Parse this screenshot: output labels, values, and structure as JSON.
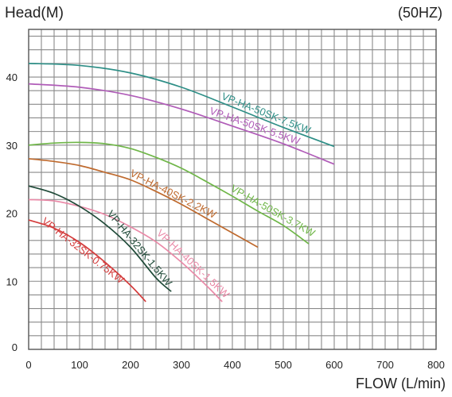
{
  "chart_data": {
    "type": "line",
    "ylabel": "Head(M)",
    "frequency_label": "(50HZ)",
    "xlabel": "FLOW (L/min)",
    "xlim": [
      0,
      800
    ],
    "ylim": [
      0,
      47
    ],
    "x_ticks": [
      0,
      100,
      200,
      300,
      400,
      500,
      600,
      700,
      800
    ],
    "y_ticks": [
      0,
      10,
      20,
      30,
      40
    ],
    "grid": true,
    "series": [
      {
        "name": "VP-HA-50SK-7.5KW",
        "color": "#2e8f87",
        "x": [
          0,
          100,
          200,
          300,
          400,
          500,
          600
        ],
        "y": [
          42,
          41.7,
          40.6,
          38.5,
          35.6,
          32.6,
          29.8
        ]
      },
      {
        "name": "VP-HA-50SK-5.5KW",
        "color": "#b05cb8",
        "x": [
          0,
          100,
          200,
          300,
          400,
          500,
          600
        ],
        "y": [
          39,
          38.5,
          37.3,
          35.3,
          32.8,
          30.2,
          27.2
        ]
      },
      {
        "name": "VP-HA-50SK-3.7KW",
        "color": "#6fb648",
        "x": [
          0,
          50,
          100,
          150,
          200,
          250,
          300,
          350,
          400,
          450,
          500,
          550
        ],
        "y": [
          30,
          30.3,
          30.4,
          30.2,
          29.5,
          28.2,
          26.6,
          24.6,
          22.5,
          20.3,
          18.2,
          15.5
        ]
      },
      {
        "name": "VP-HA-40SK-2.2KW",
        "color": "#bf6a2e",
        "x": [
          0,
          50,
          100,
          150,
          200,
          250,
          300,
          350,
          400,
          450
        ],
        "y": [
          28,
          27.6,
          27,
          26,
          24.9,
          23.2,
          21.3,
          19.2,
          17.1,
          15.0
        ]
      },
      {
        "name": "VP-HA-40SK-1.5KW",
        "color": "#ea8aa8",
        "x": [
          0,
          50,
          100,
          150,
          200,
          250,
          300,
          350,
          380
        ],
        "y": [
          22,
          21.8,
          21,
          19.8,
          18,
          15.8,
          12.8,
          9.3,
          7.0
        ]
      },
      {
        "name": "VP-HA-32SK-1.5KW",
        "color": "#1f4a38",
        "x": [
          0,
          50,
          100,
          150,
          200,
          250,
          280
        ],
        "y": [
          24,
          22.9,
          21,
          18.4,
          15.0,
          10.5,
          8.5
        ]
      },
      {
        "name": "VP-HA-32SK-0.75KW",
        "color": "#d43c3c",
        "x": [
          0,
          50,
          100,
          150,
          200,
          230
        ],
        "y": [
          19,
          17.8,
          15.7,
          12.8,
          9.4,
          7.0
        ]
      }
    ]
  }
}
